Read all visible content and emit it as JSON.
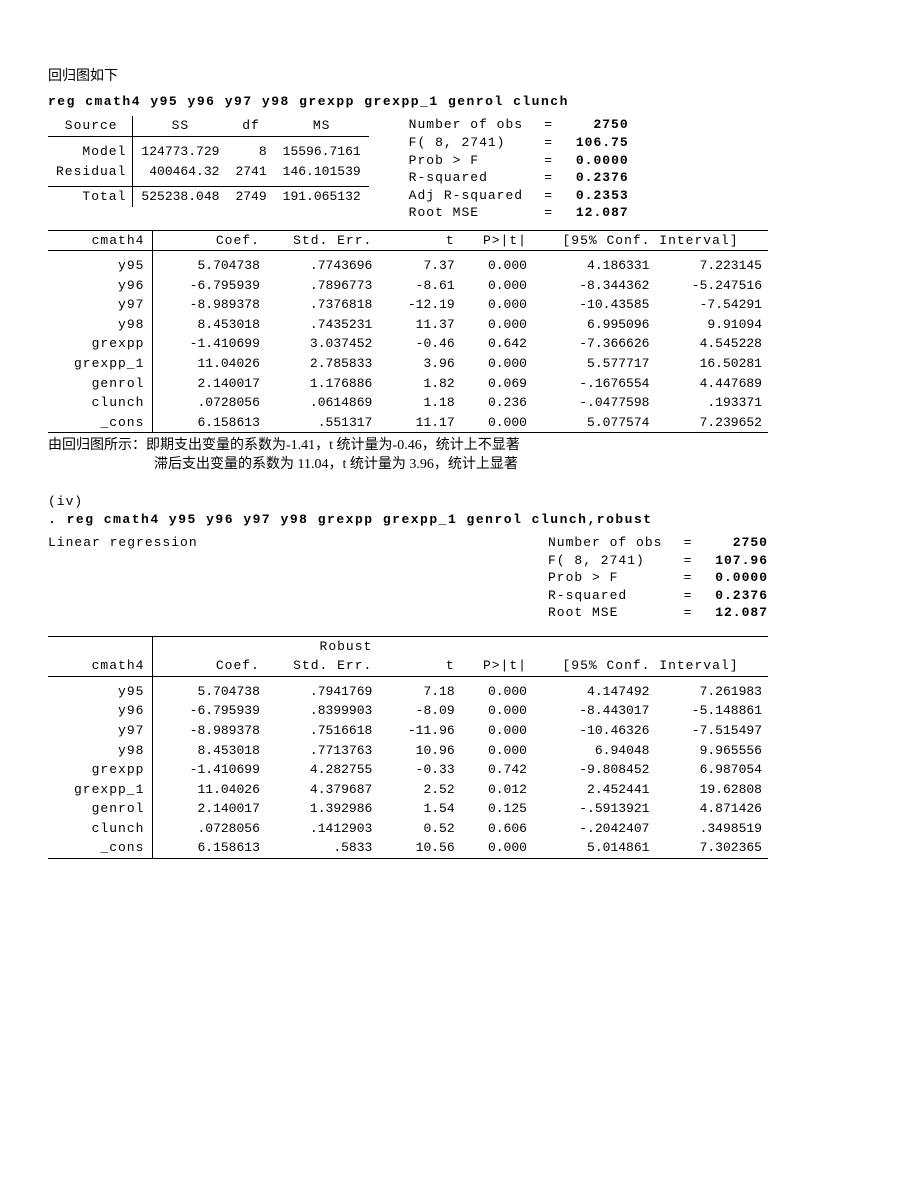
{
  "heading1": "回归图如下",
  "cmd1": "reg cmath4  y95  y96  y97  y98  grexpp  grexpp_1  genrol clunch",
  "anova": {
    "headers": [
      "Source",
      "SS",
      "df",
      "MS"
    ],
    "model": [
      "Model",
      "124773.729",
      "8",
      "15596.7161"
    ],
    "residual": [
      "Residual",
      "400464.32",
      "2741",
      "146.101539"
    ],
    "total": [
      "Total",
      "525238.048",
      "2749",
      "191.065132"
    ]
  },
  "stats1": [
    [
      "Number of obs",
      "2750"
    ],
    [
      "F(  8,  2741)",
      "106.75"
    ],
    [
      "Prob > F",
      "0.0000"
    ],
    [
      "R-squared",
      "0.2376"
    ],
    [
      "Adj R-squared",
      "0.2353"
    ],
    [
      "Root MSE",
      "12.087"
    ]
  ],
  "coef_hdr": {
    "dep": "cmath4",
    "c": "Coef.",
    "se": "Std. Err.",
    "t": "t",
    "p": "P>|t|",
    "ci": "[95% Conf. Interval]"
  },
  "coef1": [
    [
      "y95",
      "5.704738",
      ".7743696",
      "7.37",
      "0.000",
      "4.186331",
      "7.223145"
    ],
    [
      "y96",
      "-6.795939",
      ".7896773",
      "-8.61",
      "0.000",
      "-8.344362",
      "-5.247516"
    ],
    [
      "y97",
      "-8.989378",
      ".7376818",
      "-12.19",
      "0.000",
      "-10.43585",
      "-7.54291"
    ],
    [
      "y98",
      "8.453018",
      ".7435231",
      "11.37",
      "0.000",
      "6.995096",
      "9.91094"
    ],
    [
      "grexpp",
      "-1.410699",
      "3.037452",
      "-0.46",
      "0.642",
      "-7.366626",
      "4.545228"
    ],
    [
      "grexpp_1",
      "11.04026",
      "2.785833",
      "3.96",
      "0.000",
      "5.577717",
      "16.50281"
    ],
    [
      "genrol",
      "2.140017",
      "1.176886",
      "1.82",
      "0.069",
      "-.1676554",
      "4.447689"
    ],
    [
      "clunch",
      ".0728056",
      ".0614869",
      "1.18",
      "0.236",
      "-.0477598",
      ".193371"
    ],
    [
      "_cons",
      "6.158613",
      ".551317",
      "11.17",
      "0.000",
      "5.077574",
      "7.239652"
    ]
  ],
  "note1a": "由回归图所示：即期支出变量的系数为-1.41，t 统计量为-0.46，统计上不显著",
  "note1b": "滞后支出变量的系数为 11.04，t 统计量为 3.96，统计上显著",
  "section2": "(iv)",
  "cmd2": ". reg     cmath4  y95  y96  y97  y98  grexpp  grexpp_1  genrol clunch,robust",
  "lr_label": "Linear regression",
  "stats2": [
    [
      "Number of obs",
      "2750"
    ],
    [
      "F(  8,  2741)",
      "107.96"
    ],
    [
      "Prob > F",
      "0.0000"
    ],
    [
      "R-squared",
      "0.2376"
    ],
    [
      "Root MSE",
      "12.087"
    ]
  ],
  "robust_label": "Robust",
  "coef2": [
    [
      "y95",
      "5.704738",
      ".7941769",
      "7.18",
      "0.000",
      "4.147492",
      "7.261983"
    ],
    [
      "y96",
      "-6.795939",
      ".8399903",
      "-8.09",
      "0.000",
      "-8.443017",
      "-5.148861"
    ],
    [
      "y97",
      "-8.989378",
      ".7516618",
      "-11.96",
      "0.000",
      "-10.46326",
      "-7.515497"
    ],
    [
      "y98",
      "8.453018",
      ".7713763",
      "10.96",
      "0.000",
      "6.94048",
      "9.965556"
    ],
    [
      "grexpp",
      "-1.410699",
      "4.282755",
      "-0.33",
      "0.742",
      "-9.808452",
      "6.987054"
    ],
    [
      "grexpp_1",
      "11.04026",
      "4.379687",
      "2.52",
      "0.012",
      "2.452441",
      "19.62808"
    ],
    [
      "genrol",
      "2.140017",
      "1.392986",
      "1.54",
      "0.125",
      "-.5913921",
      "4.871426"
    ],
    [
      "clunch",
      ".0728056",
      ".1412903",
      "0.52",
      "0.606",
      "-.2042407",
      ".3498519"
    ],
    [
      "_cons",
      "6.158613",
      ".5833",
      "10.56",
      "0.000",
      "5.014861",
      "7.302365"
    ]
  ]
}
